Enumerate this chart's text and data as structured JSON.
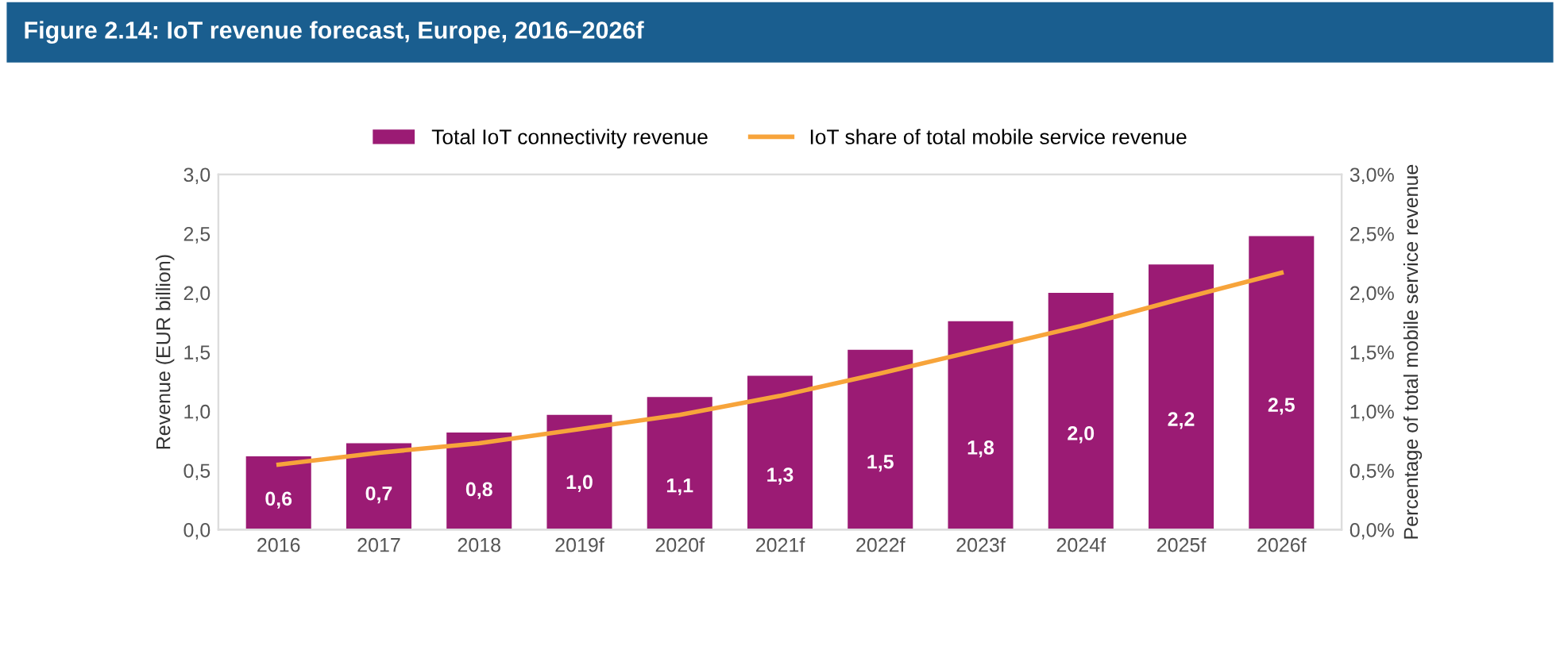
{
  "chart_data": {
    "type": "bar",
    "title": "Figure 2.14: IoT revenue forecast, Europe, 2016–2026f",
    "ylabel": "Revenue (EUR billion)",
    "y2label": "Percentage of total mobile service revenue",
    "categories": [
      "2016",
      "2017",
      "2018",
      "2019f",
      "2020f",
      "2021f",
      "2022f",
      "2023f",
      "2024f",
      "2025f",
      "2026f"
    ],
    "series": [
      {
        "name": "Total IoT connectivity revenue",
        "color": "#9b1b74",
        "values": [
          0.62,
          0.73,
          0.82,
          0.97,
          1.12,
          1.3,
          1.52,
          1.76,
          2.0,
          2.24,
          2.48
        ],
        "value_labels": [
          "0,6",
          "0,7",
          "0,8",
          "1,0",
          "1,1",
          "1,3",
          "1,5",
          "1,8",
          "2,0",
          "2,2",
          "2,5"
        ]
      },
      {
        "name": "IoT share of total mobile service revenue",
        "type": "line",
        "axis": "y2",
        "color": "#f7a43b",
        "values": [
          0.55,
          0.65,
          0.73,
          0.85,
          0.97,
          1.13,
          1.32,
          1.52,
          1.72,
          1.95,
          2.17
        ]
      }
    ],
    "ylim": [
      0,
      3
    ],
    "yticks": [
      {
        "value": 0,
        "label": "0,0"
      },
      {
        "value": 0.5,
        "label": "0,5"
      },
      {
        "value": 1,
        "label": "1,0"
      },
      {
        "value": 1.5,
        "label": "1,5"
      },
      {
        "value": 2,
        "label": "2,0"
      },
      {
        "value": 2.5,
        "label": "2,5"
      },
      {
        "value": 3,
        "label": "3,0"
      }
    ],
    "y2lim": [
      0,
      3
    ],
    "y2ticks": [
      {
        "value": 0,
        "label": "0,0%"
      },
      {
        "value": 0.5,
        "label": "0,5%"
      },
      {
        "value": 1,
        "label": "1,0%"
      },
      {
        "value": 1.5,
        "label": "1,5%"
      },
      {
        "value": 2,
        "label": "2,0%"
      },
      {
        "value": 2.5,
        "label": "2,5%"
      },
      {
        "value": 3,
        "label": "3,0%"
      }
    ],
    "grid": false,
    "legend": "top",
    "marker": "none",
    "line_style": "solid"
  }
}
